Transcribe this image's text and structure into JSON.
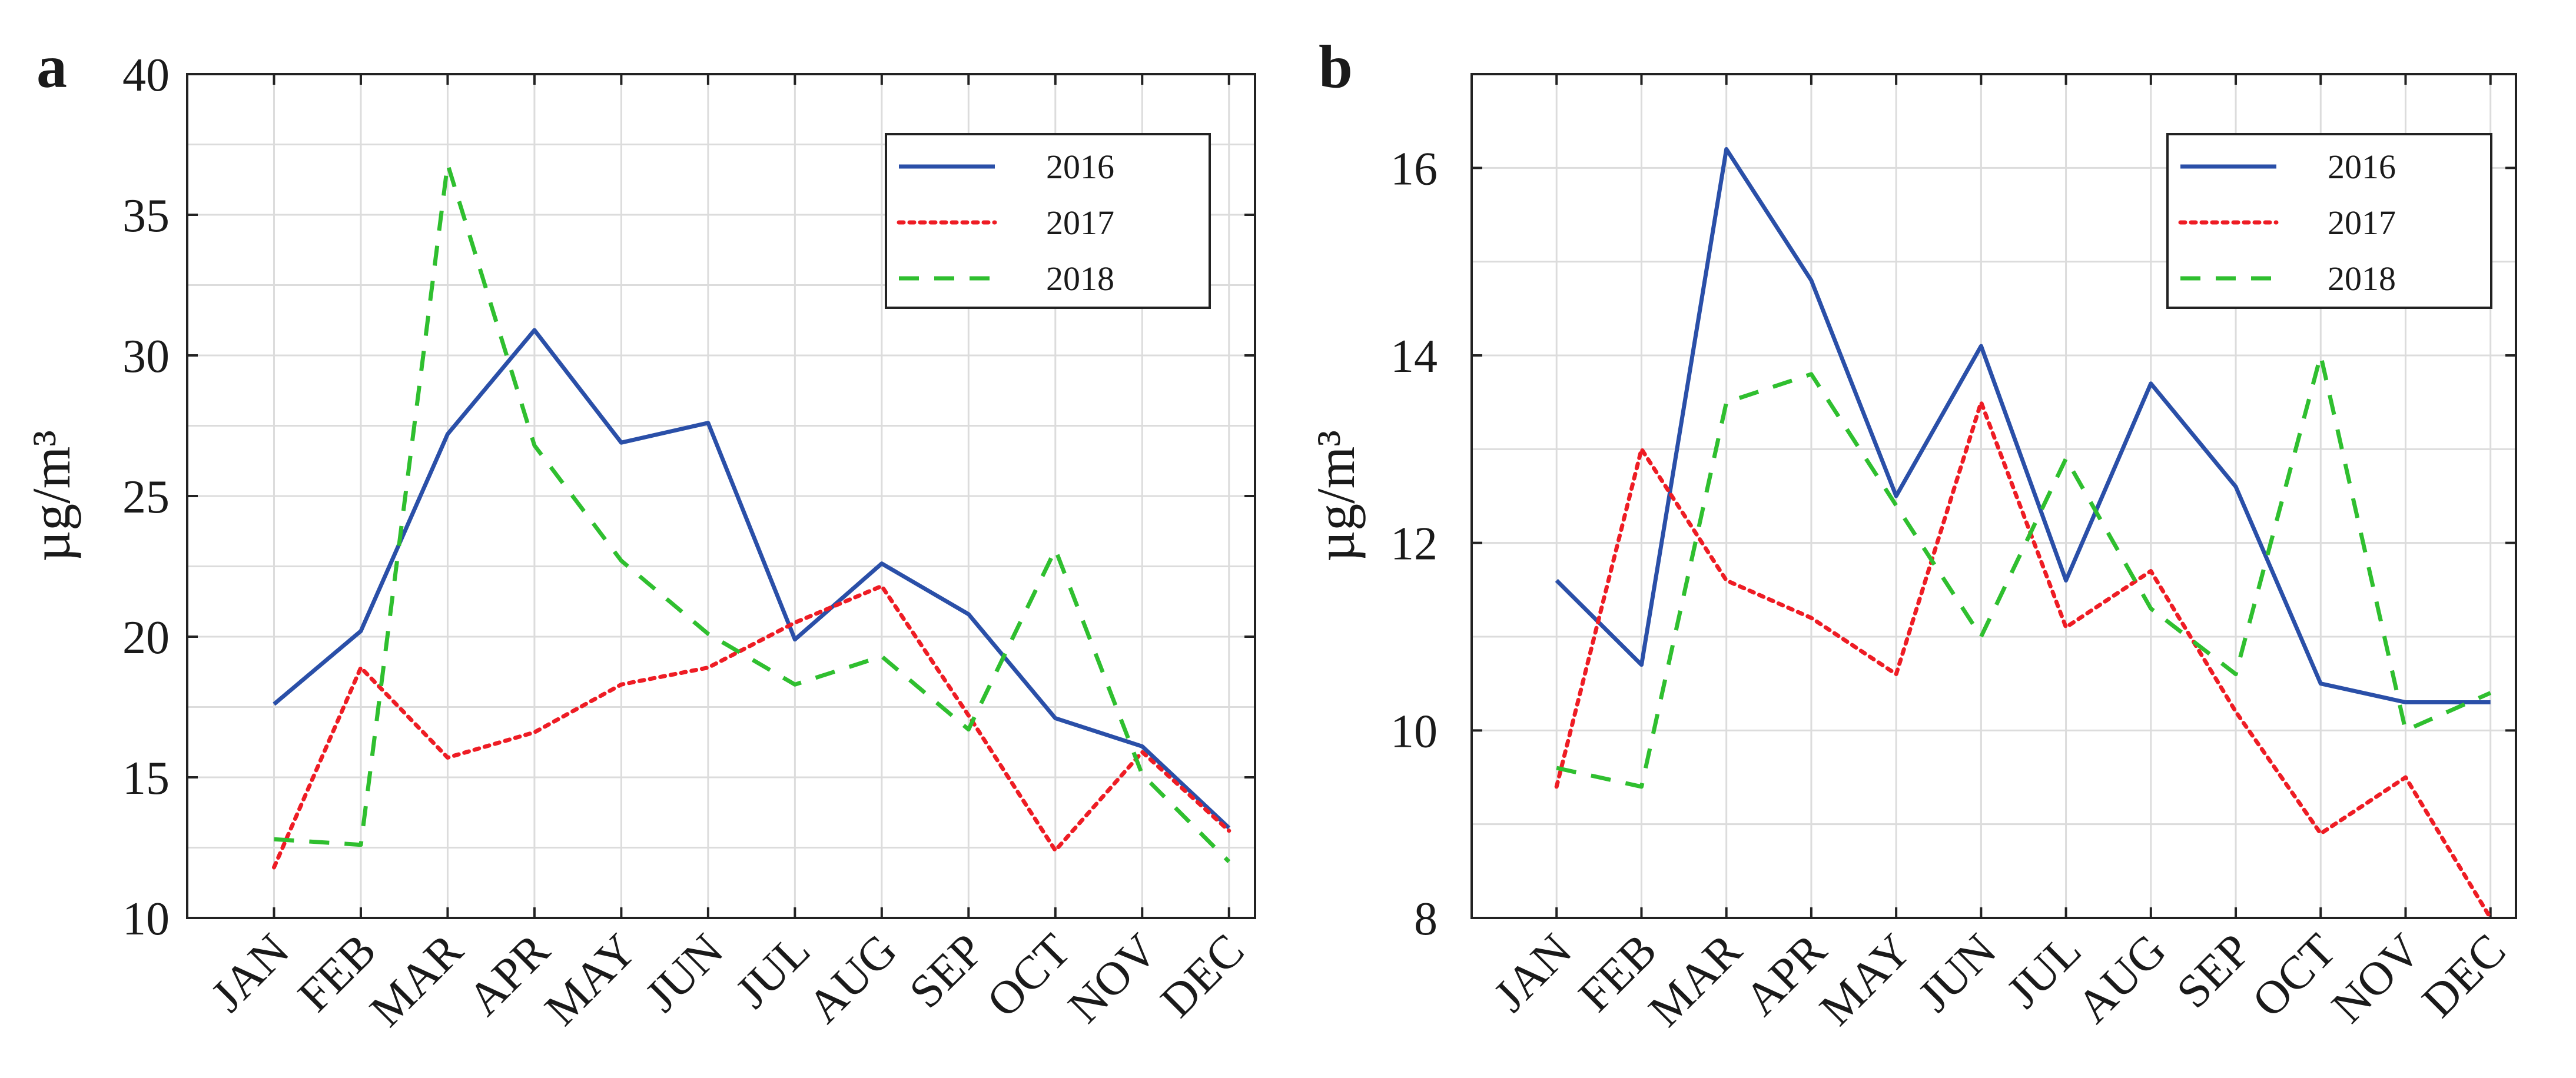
{
  "colors": {
    "2016": "#2a4fa8",
    "2017": "#ee1c24",
    "2018": "#2fbf2f"
  },
  "chart_data": [
    {
      "panel": "a",
      "type": "line",
      "ylabel": "µg/m³",
      "xlabel": "",
      "categories": [
        "JAN",
        "FEB",
        "MAR",
        "APR",
        "MAY",
        "JUN",
        "JUL",
        "AUG",
        "SEP",
        "OCT",
        "NOV",
        "DEC"
      ],
      "ylim": [
        10,
        40
      ],
      "yticks": [
        10,
        15,
        20,
        25,
        30,
        35,
        40
      ],
      "grid": true,
      "legend_position": "top-right",
      "series": [
        {
          "name": "2016",
          "style": "solid",
          "values": [
            17.6,
            20.2,
            27.2,
            30.9,
            26.9,
            27.6,
            19.9,
            22.6,
            20.8,
            17.1,
            16.1,
            13.2
          ]
        },
        {
          "name": "2017",
          "style": "dotted",
          "values": [
            11.8,
            18.9,
            15.7,
            16.6,
            18.3,
            18.9,
            20.5,
            21.8,
            17.2,
            12.4,
            15.9,
            13.1
          ]
        },
        {
          "name": "2018",
          "style": "dashed",
          "values": [
            12.8,
            12.6,
            36.8,
            26.8,
            22.7,
            20.1,
            18.3,
            19.3,
            16.7,
            23.1,
            15.1,
            12.0
          ]
        }
      ]
    },
    {
      "panel": "b",
      "type": "line",
      "ylabel": "µg/m³",
      "xlabel": "",
      "categories": [
        "JAN",
        "FEB",
        "MAR",
        "APR",
        "MAY",
        "JUN",
        "JUL",
        "AUG",
        "SEP",
        "OCT",
        "NOV",
        "DEC"
      ],
      "ylim": [
        8,
        17
      ],
      "yticks": [
        8,
        10,
        12,
        14,
        16
      ],
      "grid": true,
      "legend_position": "top-right",
      "series": [
        {
          "name": "2016",
          "style": "solid",
          "values": [
            11.6,
            10.7,
            16.2,
            14.8,
            12.5,
            14.1,
            11.6,
            13.7,
            12.6,
            10.5,
            10.3,
            10.3
          ]
        },
        {
          "name": "2017",
          "style": "dotted",
          "values": [
            9.4,
            13.0,
            11.6,
            11.2,
            10.6,
            13.5,
            11.1,
            11.7,
            10.2,
            8.9,
            9.5,
            8.0
          ]
        },
        {
          "name": "2018",
          "style": "dashed",
          "values": [
            9.6,
            9.4,
            13.5,
            13.8,
            12.4,
            11.0,
            12.9,
            11.3,
            10.6,
            14.0,
            10.0,
            10.4
          ]
        }
      ]
    }
  ]
}
